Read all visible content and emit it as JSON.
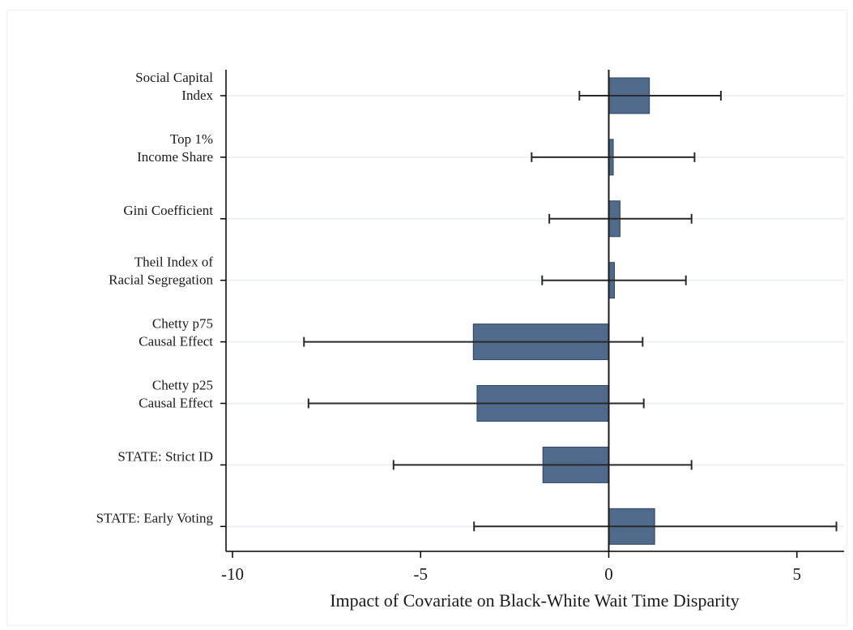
{
  "chart_data": {
    "type": "bar",
    "orientation": "horizontal",
    "xlabel": "Impact of Covariate on Black-White Wait Time Disparity",
    "ylabel": "",
    "xlim": [
      -10.3,
      6.2
    ],
    "xticks": [
      -10,
      -5,
      0,
      5
    ],
    "xtick_labels": [
      "-10",
      "-5",
      "0",
      "5"
    ],
    "grid": "horizontal",
    "colors": {
      "bar": "#4f6a8a",
      "bar_edge": "#2c4461",
      "error": "#2a2a2a",
      "grid": "#edf0f3",
      "axis": "#000000"
    },
    "categories": [
      [
        "Social Capital",
        "Index"
      ],
      [
        "Top 1%",
        "Income Share"
      ],
      [
        "Gini Coefficient"
      ],
      [
        "Theil Index of",
        "Racial Segregation"
      ],
      [
        "Chetty p75",
        "Causal Effect"
      ],
      [
        "Chetty p25",
        "Causal Effect"
      ],
      [
        "STATE: Strict ID"
      ],
      [
        "STATE: Early Voting"
      ]
    ],
    "values": [
      1.08,
      0.12,
      0.3,
      0.15,
      -3.6,
      -3.5,
      -1.75,
      1.22
    ],
    "ci_low": [
      -0.78,
      -2.05,
      -1.58,
      -1.77,
      -8.1,
      -7.98,
      -5.72,
      -3.58
    ],
    "ci_high": [
      2.98,
      2.28,
      2.2,
      2.05,
      0.9,
      0.93,
      2.2,
      6.05
    ]
  }
}
